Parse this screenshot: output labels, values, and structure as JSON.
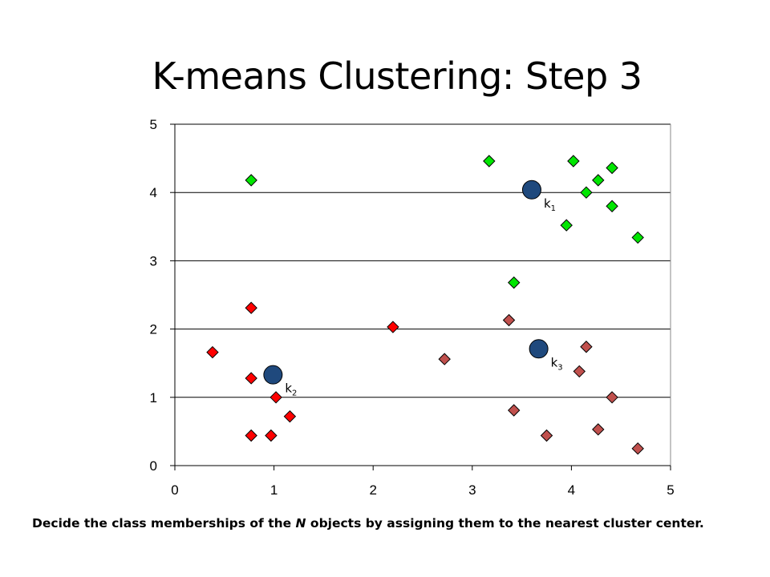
{
  "slide": {
    "title": "K-means Clustering: Step 3",
    "caption_part1": "Decide the class memberships of the ",
    "caption_italic": "N",
    "caption_part2": " objects by assigning them to the nearest cluster center."
  },
  "chart_data": {
    "type": "scatter",
    "title": "",
    "xlabel": "",
    "ylabel": "",
    "xlim": [
      0,
      5
    ],
    "ylim": [
      0,
      5
    ],
    "x_ticks": [
      "0",
      "1",
      "2",
      "3",
      "4",
      "5"
    ],
    "y_ticks": [
      "0",
      "1",
      "2",
      "3",
      "4",
      "5"
    ],
    "grid": "horizontal",
    "series": [
      {
        "color": "#00e600",
        "marker": "diamond",
        "points": [
          [
            0.77,
            4.18
          ],
          [
            3.17,
            4.46
          ],
          [
            4.02,
            4.46
          ],
          [
            4.27,
            4.18
          ],
          [
            4.41,
            4.36
          ],
          [
            4.15,
            4.0
          ],
          [
            4.41,
            3.8
          ],
          [
            3.95,
            3.52
          ],
          [
            4.67,
            3.34
          ],
          [
            3.42,
            2.68
          ]
        ]
      },
      {
        "color": "#ff0000",
        "marker": "diamond",
        "points": [
          [
            0.77,
            2.31
          ],
          [
            2.2,
            2.03
          ],
          [
            0.38,
            1.66
          ],
          [
            0.77,
            1.28
          ],
          [
            1.02,
            1.0
          ],
          [
            1.16,
            0.72
          ],
          [
            0.77,
            0.44
          ],
          [
            0.97,
            0.44
          ]
        ]
      },
      {
        "color": "#c0504d",
        "marker": "diamond",
        "points": [
          [
            3.37,
            2.13
          ],
          [
            4.15,
            1.74
          ],
          [
            2.72,
            1.56
          ],
          [
            4.08,
            1.38
          ],
          [
            4.41,
            1.0
          ],
          [
            3.42,
            0.81
          ],
          [
            3.75,
            0.44
          ],
          [
            4.27,
            0.53
          ],
          [
            4.67,
            0.25
          ]
        ]
      }
    ],
    "centers": [
      {
        "label": "k",
        "sub": "1",
        "x": 3.6,
        "y": 4.04,
        "color": "#1f497d"
      },
      {
        "label": "k",
        "sub": "2",
        "x": 0.99,
        "y": 1.33,
        "color": "#1f497d"
      },
      {
        "label": "k",
        "sub": "3",
        "x": 3.67,
        "y": 1.71,
        "color": "#1f497d"
      }
    ]
  }
}
